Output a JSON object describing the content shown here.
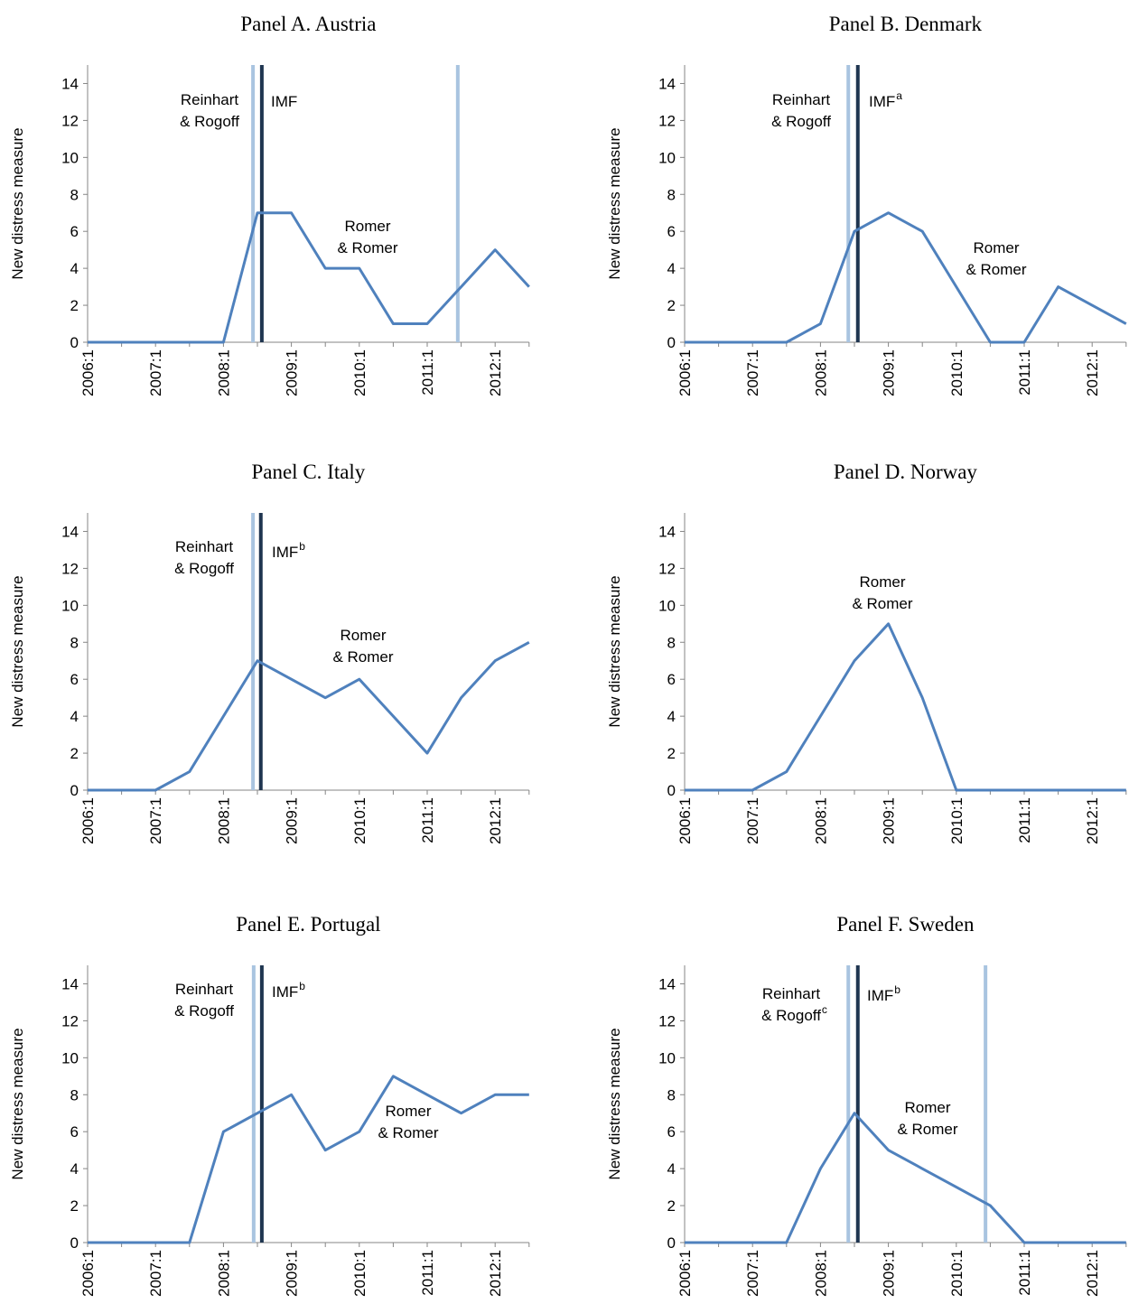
{
  "chart_data": [
    {
      "type": "line",
      "title": "Panel A.  Austria",
      "y_label": "New distress measure",
      "categories": [
        "2006:1",
        null,
        "2007:1",
        null,
        "2008:1",
        null,
        "2009:1",
        null,
        "2010:1",
        null,
        "2011:1",
        null,
        "2012:1",
        null
      ],
      "values": [
        0,
        0,
        0,
        0,
        0,
        7,
        7,
        4,
        4,
        1,
        1,
        3,
        5,
        3
      ],
      "color": "#4f81bd",
      "ylim": [
        0,
        15
      ],
      "yticks": [
        0,
        2,
        4,
        6,
        8,
        10,
        12,
        14
      ],
      "reference_lines": [
        {
          "x": 4.87,
          "color": "#a9c4e0"
        },
        {
          "x": 5.13,
          "color": "#1f3550"
        },
        {
          "x": 10.9,
          "color": "#a9c4e0"
        }
      ],
      "annotations": [
        {
          "text": [
            "Reinhart",
            "& Rogoff"
          ]
        },
        {
          "text": [
            "IMF"
          ]
        },
        {
          "text": [
            "Romer",
            "& Romer"
          ]
        }
      ]
    },
    {
      "type": "line",
      "title": "Panel B.  Denmark",
      "y_label": "New distress measure",
      "categories": [
        "2006:1",
        null,
        "2007:1",
        null,
        "2008:1",
        null,
        "2009:1",
        null,
        "2010:1",
        null,
        "2011:1",
        null,
        "2012:1",
        null
      ],
      "values": [
        0,
        0,
        0,
        0,
        1,
        6,
        7,
        6,
        3,
        0,
        0,
        3,
        2,
        1
      ],
      "color": "#4f81bd",
      "ylim": [
        0,
        15
      ],
      "yticks": [
        0,
        2,
        4,
        6,
        8,
        10,
        12,
        14
      ],
      "reference_lines": [
        {
          "x": 4.82,
          "color": "#a9c4e0"
        },
        {
          "x": 5.1,
          "color": "#1f3550"
        }
      ],
      "annotations": [
        {
          "text": [
            "Reinhart",
            "& Rogoff"
          ]
        },
        {
          "text": [
            "IMF"
          ],
          "sup": "a"
        },
        {
          "text": [
            "Romer",
            "& Romer"
          ]
        }
      ]
    },
    {
      "type": "line",
      "title": "Panel C.  Italy",
      "y_label": "New distress measure",
      "categories": [
        "2006:1",
        null,
        "2007:1",
        null,
        "2008:1",
        null,
        "2009:1",
        null,
        "2010:1",
        null,
        "2011:1",
        null,
        "2012:1",
        null
      ],
      "values": [
        0,
        0,
        0,
        1,
        4,
        7,
        6,
        5,
        6,
        4,
        2,
        5,
        7,
        8
      ],
      "color": "#4f81bd",
      "ylim": [
        0,
        15
      ],
      "yticks": [
        0,
        2,
        4,
        6,
        8,
        10,
        12,
        14
      ],
      "reference_lines": [
        {
          "x": 4.87,
          "color": "#a9c4e0"
        },
        {
          "x": 5.1,
          "color": "#1f3550"
        }
      ],
      "annotations": [
        {
          "text": [
            "Reinhart",
            "& Rogoff"
          ]
        },
        {
          "text": [
            "IMF"
          ],
          "sup": "b"
        },
        {
          "text": [
            "Romer",
            "& Romer"
          ]
        }
      ]
    },
    {
      "type": "line",
      "title": "Panel D.  Norway",
      "y_label": "New distress measure",
      "categories": [
        "2006:1",
        null,
        "2007:1",
        null,
        "2008:1",
        null,
        "2009:1",
        null,
        "2010:1",
        null,
        "2011:1",
        null,
        "2012:1",
        null
      ],
      "values": [
        0,
        0,
        0,
        1,
        4,
        7,
        9,
        5,
        0,
        0,
        0,
        0,
        0,
        0
      ],
      "color": "#4f81bd",
      "ylim": [
        0,
        15
      ],
      "yticks": [
        0,
        2,
        4,
        6,
        8,
        10,
        12,
        14
      ],
      "reference_lines": [],
      "annotations": [
        {
          "text": [
            "Romer",
            "& Romer"
          ]
        }
      ]
    },
    {
      "type": "line",
      "title": "Panel E.  Portugal",
      "y_label": "New distress measure",
      "categories": [
        "2006:1",
        null,
        "2007:1",
        null,
        "2008:1",
        null,
        "2009:1",
        null,
        "2010:1",
        null,
        "2011:1",
        null,
        "2012:1",
        null
      ],
      "values": [
        0,
        0,
        0,
        0,
        6,
        7,
        8,
        5,
        6,
        9,
        8,
        7,
        8,
        8
      ],
      "color": "#4f81bd",
      "ylim": [
        0,
        15
      ],
      "yticks": [
        0,
        2,
        4,
        6,
        8,
        10,
        12,
        14
      ],
      "reference_lines": [
        {
          "x": 4.89,
          "color": "#a9c4e0"
        },
        {
          "x": 5.13,
          "color": "#1f3550"
        }
      ],
      "annotations": [
        {
          "text": [
            "Reinhart",
            "& Rogoff"
          ]
        },
        {
          "text": [
            "IMF"
          ],
          "sup": "b"
        },
        {
          "text": [
            "Romer",
            "& Romer"
          ]
        }
      ]
    },
    {
      "type": "line",
      "title": "Panel F.  Sweden",
      "y_label": "New distress measure",
      "categories": [
        "2006:1",
        null,
        "2007:1",
        null,
        "2008:1",
        null,
        "2009:1",
        null,
        "2010:1",
        null,
        "2011:1",
        null,
        "2012:1",
        null
      ],
      "values": [
        0,
        0,
        0,
        0,
        4,
        7,
        5,
        4,
        3,
        2,
        0,
        0,
        0,
        0
      ],
      "color": "#4f81bd",
      "ylim": [
        0,
        15
      ],
      "yticks": [
        0,
        2,
        4,
        6,
        8,
        10,
        12,
        14
      ],
      "reference_lines": [
        {
          "x": 4.82,
          "color": "#a9c4e0"
        },
        {
          "x": 5.1,
          "color": "#1f3550"
        },
        {
          "x": 8.86,
          "color": "#a9c4e0"
        }
      ],
      "annotations": [
        {
          "text": [
            "Reinhart",
            "& Rogoff"
          ],
          "sup": "c"
        },
        {
          "text": [
            "IMF"
          ],
          "sup": "b"
        },
        {
          "text": [
            "Romer",
            "& Romer"
          ]
        }
      ]
    }
  ]
}
